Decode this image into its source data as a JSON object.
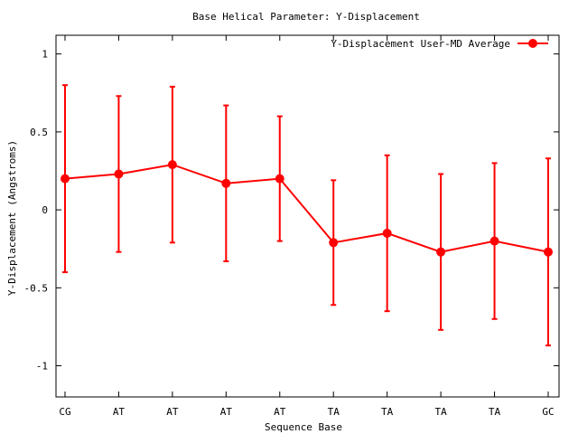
{
  "chart_data": {
    "type": "line",
    "title": "Base  Helical Parameter: Y-Displacement",
    "xlabel": "Sequence Base",
    "ylabel": "Y-Displacement (Angstroms)",
    "ylim": [
      -1.2,
      1.12
    ],
    "yticks": [
      -1,
      -0.5,
      0,
      0.5,
      1
    ],
    "ytick_labels": [
      "-1",
      "-0.5",
      "0",
      "0.5",
      "1"
    ],
    "grid": false,
    "legend_position": "top-right",
    "categories": [
      "CG",
      "AT",
      "AT",
      "AT",
      "AT",
      "TA",
      "TA",
      "TA",
      "TA",
      "GC"
    ],
    "series": [
      {
        "name": "Y-Displacement User-MD Average",
        "color": "#ff0000",
        "marker": "circle",
        "values": [
          0.2,
          0.23,
          0.29,
          0.17,
          0.2,
          -0.21,
          -0.15,
          -0.27,
          -0.2,
          -0.27
        ],
        "error_low": [
          -0.4,
          -0.27,
          -0.21,
          -0.33,
          -0.2,
          -0.61,
          -0.65,
          -0.77,
          -0.7,
          -0.87
        ],
        "error_high": [
          0.8,
          0.73,
          0.79,
          0.67,
          0.6,
          0.19,
          0.35,
          0.23,
          0.3,
          0.33
        ]
      }
    ]
  }
}
